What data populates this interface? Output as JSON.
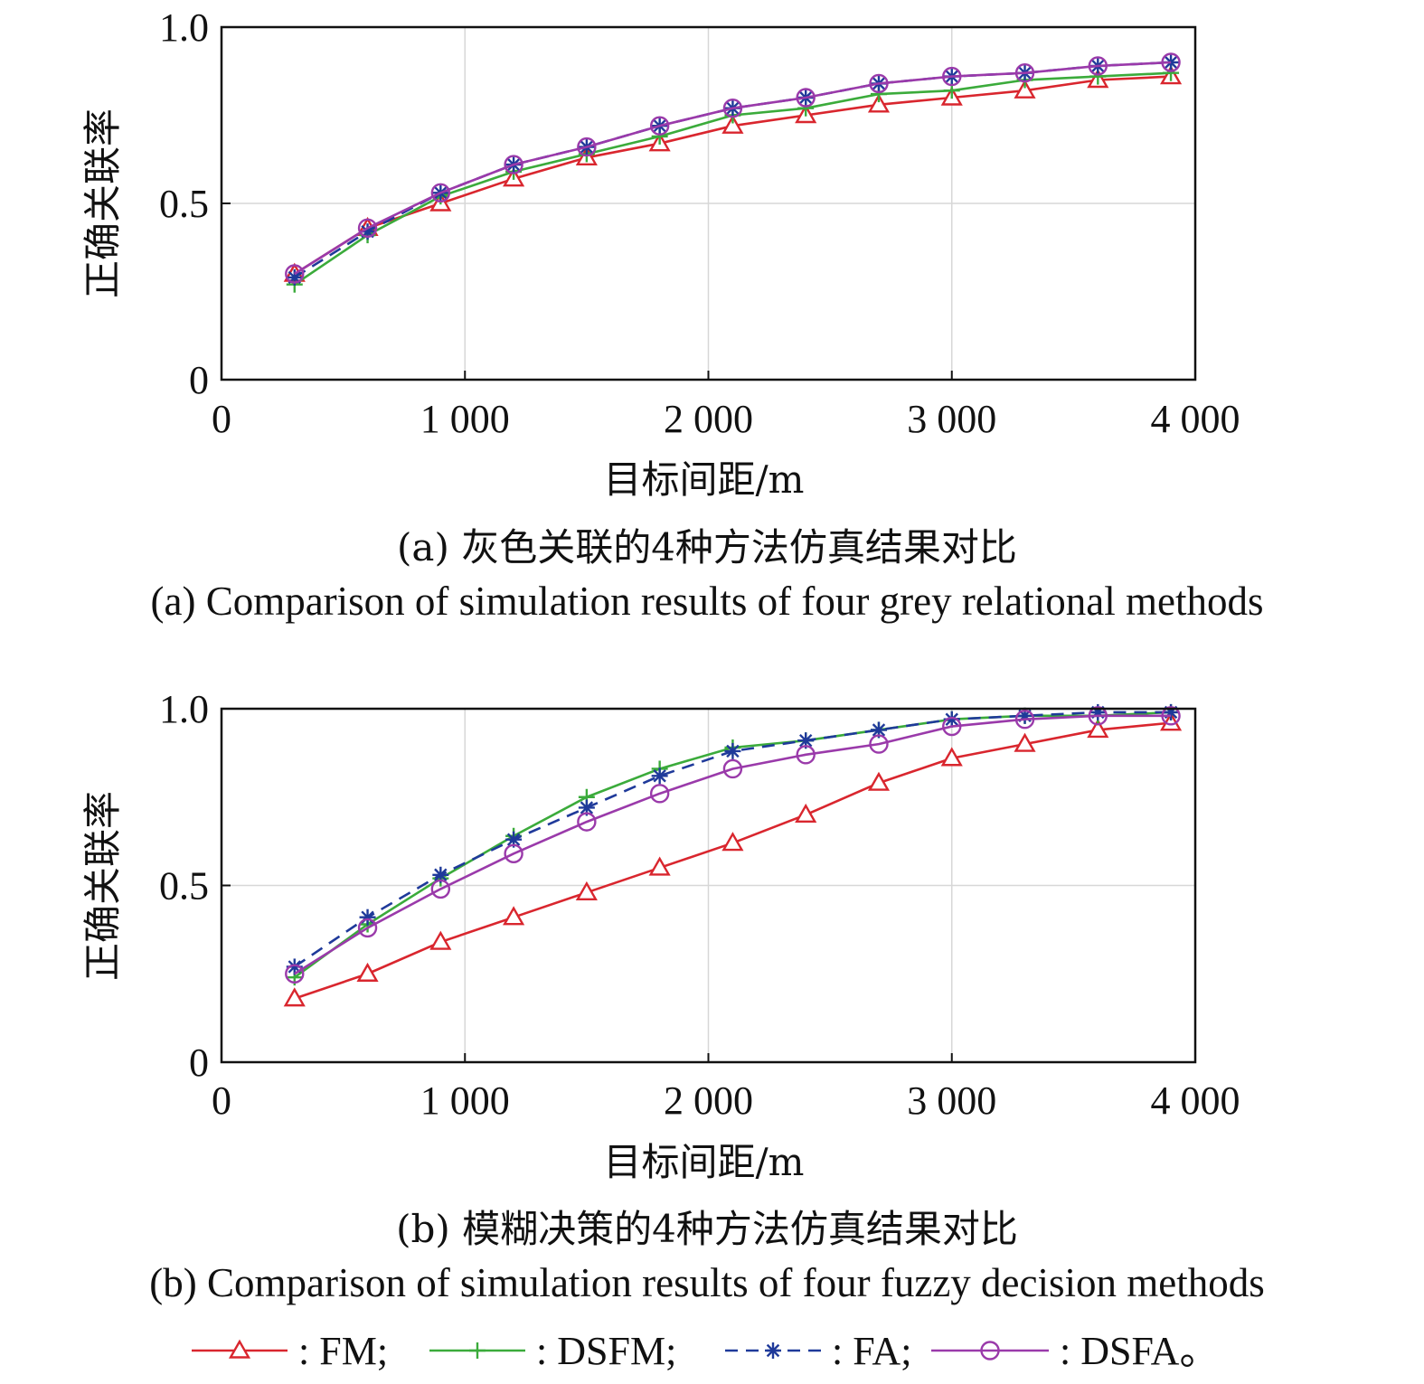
{
  "colors": {
    "FM": "#d9262e",
    "DSFM": "#3bab3b",
    "FA": "#1f3a9a",
    "DSFA": "#9a3aaa",
    "grid": "#d7d7d7",
    "axis": "#111111"
  },
  "legend": {
    "items": [
      {
        "key": "FM",
        "label": ": FM;",
        "marker": "triangle",
        "dash": false
      },
      {
        "key": "DSFM",
        "label": ": DSFM;",
        "marker": "plus",
        "dash": false
      },
      {
        "key": "FA",
        "label": ": FA;",
        "marker": "star",
        "dash": true
      },
      {
        "key": "DSFA",
        "label": ": DSFA。",
        "marker": "circle",
        "dash": false
      }
    ]
  },
  "panels": [
    {
      "xlabel": "目标间距/m",
      "ylabel": "正确关联率",
      "caption_cn": "(a) 灰色关联的4种方法仿真结果对比",
      "caption_en": "(a) Comparison of simulation results of four grey relational methods",
      "xticks": [
        "0",
        "1 000",
        "2 000",
        "3 000",
        "4 000"
      ],
      "yticks": [
        "0",
        "0.5",
        "1.0"
      ]
    },
    {
      "xlabel": "目标间距/m",
      "ylabel": "正确关联率",
      "caption_cn": "(b) 模糊决策的4种方法仿真结果对比",
      "caption_en": "(b) Comparison of simulation results of four fuzzy decision methods",
      "xticks": [
        "0",
        "1 000",
        "2 000",
        "3 000",
        "4 000"
      ],
      "yticks": [
        "0",
        "0.5",
        "1.0"
      ]
    }
  ],
  "chart_data": [
    {
      "type": "line",
      "xlabel": "目标间距/m",
      "ylabel": "正确关联率",
      "xlim": [
        0,
        4000
      ],
      "ylim": [
        0,
        1.0
      ],
      "grid": true,
      "x": [
        300,
        600,
        900,
        1200,
        1500,
        1800,
        2100,
        2400,
        2700,
        3000,
        3300,
        3600,
        3900
      ],
      "series": [
        {
          "name": "FM",
          "values": [
            0.3,
            0.43,
            0.5,
            0.57,
            0.63,
            0.67,
            0.72,
            0.75,
            0.78,
            0.8,
            0.82,
            0.85,
            0.86
          ]
        },
        {
          "name": "DSFM",
          "values": [
            0.27,
            0.41,
            0.52,
            0.59,
            0.64,
            0.69,
            0.75,
            0.77,
            0.81,
            0.82,
            0.85,
            0.86,
            0.87
          ]
        },
        {
          "name": "FA",
          "values": [
            0.29,
            0.42,
            0.53,
            0.61,
            0.66,
            0.72,
            0.77,
            0.8,
            0.84,
            0.86,
            0.87,
            0.89,
            0.9
          ]
        },
        {
          "name": "DSFA",
          "values": [
            0.3,
            0.43,
            0.53,
            0.61,
            0.66,
            0.72,
            0.77,
            0.8,
            0.84,
            0.86,
            0.87,
            0.89,
            0.9
          ]
        }
      ]
    },
    {
      "type": "line",
      "xlabel": "目标间距/m",
      "ylabel": "正确关联率",
      "xlim": [
        0,
        4000
      ],
      "ylim": [
        0,
        1.0
      ],
      "grid": true,
      "x": [
        300,
        600,
        900,
        1200,
        1500,
        1800,
        2100,
        2400,
        2700,
        3000,
        3300,
        3600,
        3900
      ],
      "series": [
        {
          "name": "FM",
          "values": [
            0.18,
            0.25,
            0.34,
            0.41,
            0.48,
            0.55,
            0.62,
            0.7,
            0.79,
            0.86,
            0.9,
            0.94,
            0.96
          ]
        },
        {
          "name": "DSFM",
          "values": [
            0.24,
            0.39,
            0.52,
            0.64,
            0.75,
            0.83,
            0.89,
            0.91,
            0.94,
            0.97,
            0.98,
            0.98,
            0.99
          ]
        },
        {
          "name": "FA",
          "values": [
            0.27,
            0.41,
            0.53,
            0.63,
            0.72,
            0.81,
            0.88,
            0.91,
            0.94,
            0.97,
            0.98,
            0.99,
            0.99
          ]
        },
        {
          "name": "DSFA",
          "values": [
            0.25,
            0.38,
            0.49,
            0.59,
            0.68,
            0.76,
            0.83,
            0.87,
            0.9,
            0.95,
            0.97,
            0.98,
            0.98
          ]
        }
      ]
    }
  ]
}
